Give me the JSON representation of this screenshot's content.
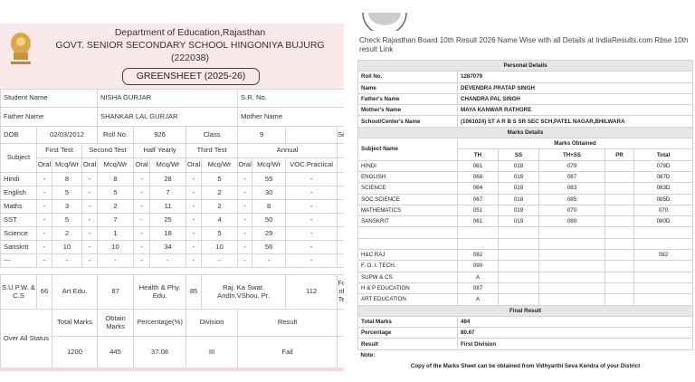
{
  "greensheet": {
    "header": {
      "department": "Department of Education,Rajasthan",
      "school": "GOVT. SENIOR SECONDARY SCHOOL HINGONIYA BUJURG",
      "code": "(222038)",
      "title": "GREENSHEET (2025-26)"
    },
    "student": {
      "name_label": "Student Name",
      "name": "NISHA GURJAR",
      "sr_label": "S.R. No.",
      "father_label": "Father Name",
      "father": "SHANKAR LAL GURJAR",
      "mother_label": "Mother Name",
      "dob_label": "DOB",
      "dob": "02/03/2012",
      "roll_label": "Roll No.",
      "roll": "926",
      "class_label": "Class",
      "class": "9",
      "cut": "Se"
    },
    "marks_table": {
      "subject_label": "Subject",
      "exams": [
        "First Test",
        "Second Test",
        "Half Yearly",
        "Third Test",
        "Annual"
      ],
      "sub_headers": [
        "Oral",
        "Mcq/Wr",
        "Oral",
        "Mcq/Wr",
        "Oral",
        "Mcq/Wr",
        "Oral",
        "Mcq/Wr",
        "Oral",
        "Mcq/Wr",
        "VOC.Practical"
      ],
      "rows": [
        [
          "Hindi",
          "-",
          "8",
          "-",
          "8",
          "-",
          "28",
          "-",
          "5",
          "-",
          "55",
          "-"
        ],
        [
          "English",
          "-",
          "5",
          "-",
          "5",
          "-",
          "7",
          "-",
          "2",
          "-",
          "30",
          "-"
        ],
        [
          "Maths",
          "-",
          "3",
          "-",
          "2",
          "-",
          "11",
          "-",
          "2",
          "-",
          "8",
          "-"
        ],
        [
          "SST",
          "-",
          "5",
          "-",
          "7",
          "-",
          "25",
          "-",
          "4",
          "-",
          "50",
          "-"
        ],
        [
          "Science",
          "-",
          "2",
          "-",
          "1",
          "-",
          "18",
          "-",
          "5",
          "-",
          "29",
          "-"
        ],
        [
          "Sanskrit",
          "-",
          "10",
          "-",
          "10",
          "-",
          "34",
          "-",
          "10",
          "-",
          "56",
          "-"
        ],
        [
          "---",
          "-",
          "-",
          "-",
          "-",
          "-",
          "-",
          "-",
          "-",
          "-",
          "-",
          "-"
        ]
      ]
    },
    "co_scholastic": {
      "items": [
        [
          "S.U.P.W. & C.S",
          "66"
        ],
        [
          "Art Edu.",
          "87"
        ],
        [
          "Health & Phy. Edu.",
          "85"
        ],
        [
          "Raj. Ka Swat. Andln.VShou. Pr.",
          "112"
        ]
      ],
      "cut": "Fc of Te"
    },
    "overall": {
      "label": "Over All Status",
      "headers": [
        "Total Marks",
        "Obtain Marks",
        "Percentage(%)",
        "Division",
        "Result"
      ],
      "values": [
        "1200",
        "445",
        "37.08",
        "III",
        "Fail"
      ]
    }
  },
  "result_page": {
    "intro": "Check Rajasthan Board 10th Result 2026 Name Wise with all Details at IndiaResults.com Rbse 10th result Link",
    "personal": {
      "title": "Personal Details",
      "rows": [
        [
          "Roll No.",
          "1287079"
        ],
        [
          "Name",
          "DEVENDRA PRATAP SINGH"
        ],
        [
          "Father's Name",
          "CHANDRA PAL SINGH"
        ],
        [
          "Mother's Name",
          "MAYA KANWAR RATHORE"
        ],
        [
          "School/Center's Name",
          "(1061024) ST A R B S SR SEC SCH,PATEL NAGAR,BHILWARA"
        ]
      ]
    },
    "marks": {
      "title": "Marks Details",
      "subject_label": "Subject Name",
      "obtained_label": "Marks Obtained",
      "columns": [
        "TH",
        "SS",
        "TH+SS",
        "PR",
        "Total"
      ],
      "rows": [
        [
          "HINDI",
          "061",
          "018",
          "079",
          null,
          "079D"
        ],
        [
          "ENGLISH",
          "068",
          "019",
          "087",
          null,
          "087D"
        ],
        [
          "SCIENCE",
          "064",
          "019",
          "083",
          null,
          "083D"
        ],
        [
          "SOC.SCIENCE",
          "067",
          "018",
          "085",
          null,
          "085D"
        ],
        [
          "MATHEMATICS",
          "051",
          "019",
          "070",
          null,
          "070"
        ],
        [
          "SANSKRIT",
          "061",
          "019",
          "080",
          null,
          "080D"
        ]
      ],
      "other_rows": [
        [
          "H&C RAJ",
          "082",
          null,
          null,
          null,
          "082"
        ],
        [
          "F. O. I. TECH.",
          "090"
        ],
        [
          "SUPW & CS",
          "A"
        ],
        [
          "H & P EDUCATION",
          "087"
        ],
        [
          "ART EDUCATION",
          "A"
        ]
      ]
    },
    "final": {
      "title": "Final Result",
      "rows": [
        [
          "Total Marks",
          "484"
        ],
        [
          "Percentage",
          "80.67"
        ],
        [
          "Result",
          "First Division"
        ]
      ]
    },
    "note_label": "Note:",
    "note": "Copy of the Marks Sheet can be obtained from Vidhyarthi Seva Kendra of your District"
  }
}
